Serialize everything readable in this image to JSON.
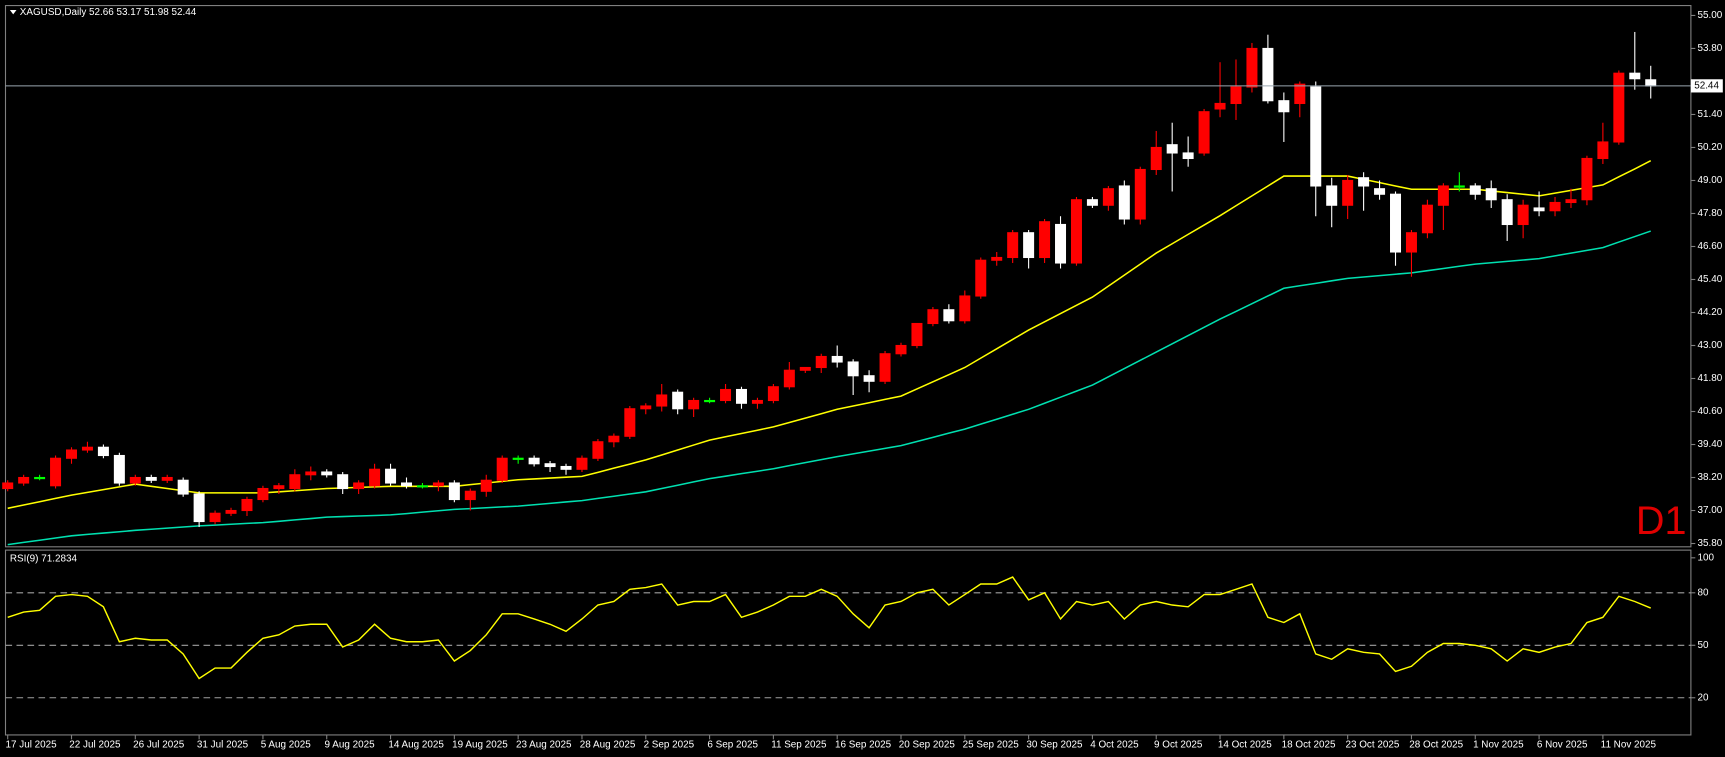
{
  "chart_data": [
    {
      "type": "candlestick",
      "title": "XAGUSD,Daily  52.66 53.17 51.98 52.44",
      "annotation": "D1",
      "categories": [
        "17 Jul 2025",
        null,
        null,
        null,
        "22 Jul 2025",
        null,
        null,
        null,
        "26 Jul 2025",
        null,
        null,
        null,
        "31 Jul 2025",
        null,
        null,
        null,
        "5 Aug 2025",
        null,
        null,
        null,
        "9 Aug 2025",
        null,
        null,
        null,
        "14 Aug 2025",
        null,
        null,
        null,
        "19 Aug 2025",
        null,
        null,
        null,
        "23 Aug 2025",
        null,
        null,
        null,
        "28 Aug 2025",
        null,
        null,
        null,
        "2 Sep 2025",
        null,
        null,
        null,
        "6 Sep 2025",
        null,
        null,
        null,
        "11 Sep 2025",
        null,
        null,
        null,
        "16 Sep 2025",
        null,
        null,
        null,
        "20 Sep 2025",
        null,
        null,
        null,
        "25 Sep 2025",
        null,
        null,
        null,
        "30 Sep 2025",
        null,
        null,
        null,
        "4 Oct 2025",
        null,
        null,
        null,
        "9 Oct 2025",
        null,
        null,
        null,
        "14 Oct 2025",
        null,
        null,
        null,
        "18 Oct 2025",
        null,
        null,
        null,
        "23 Oct 2025",
        null,
        null,
        null,
        "28 Oct 2025",
        null,
        null,
        null,
        "1 Nov 2025",
        null,
        null,
        null,
        "6 Nov 2025",
        null,
        null,
        null,
        "11 Nov 2025",
        null,
        null,
        null
      ],
      "open": [
        37.8,
        38.0,
        38.2,
        37.9,
        38.9,
        39.2,
        39.3,
        39.0,
        38.0,
        38.2,
        38.1,
        38.1,
        37.6,
        36.6,
        36.9,
        37.0,
        37.4,
        37.8,
        37.8,
        38.3,
        38.4,
        38.3,
        37.8,
        37.9,
        38.5,
        38.0,
        37.9,
        37.9,
        38.0,
        37.4,
        37.7,
        38.1,
        38.9,
        38.9,
        38.7,
        38.6,
        38.5,
        38.9,
        39.5,
        39.7,
        40.7,
        40.8,
        41.3,
        40.7,
        41.0,
        41.0,
        41.4,
        40.9,
        41.0,
        41.5,
        42.1,
        42.2,
        42.6,
        42.4,
        41.9,
        41.7,
        42.7,
        43.0,
        43.8,
        44.3,
        43.9,
        44.8,
        46.1,
        46.2,
        47.1,
        46.2,
        47.4,
        46.0,
        48.3,
        48.1,
        48.8,
        47.6,
        49.4,
        50.3,
        50.0,
        50.0,
        51.6,
        51.8,
        52.4,
        53.8,
        51.9,
        51.8,
        52.4,
        48.8,
        48.1,
        49.1,
        48.7,
        48.5,
        46.4,
        47.1,
        48.1,
        48.8,
        48.8,
        48.7,
        48.3,
        47.4,
        48.0,
        47.9,
        48.2,
        48.3,
        49.8,
        50.4,
        52.9,
        52.66
      ],
      "high": [
        38.1,
        38.3,
        38.3,
        39.0,
        39.3,
        39.5,
        39.4,
        39.1,
        38.3,
        38.3,
        38.3,
        38.2,
        37.7,
        37.0,
        37.1,
        37.5,
        37.9,
        38.0,
        38.5,
        38.6,
        38.5,
        38.4,
        38.1,
        38.7,
        38.7,
        38.2,
        38.0,
        38.1,
        38.1,
        37.8,
        38.3,
        39.0,
        39.0,
        39.0,
        38.8,
        38.7,
        39.0,
        39.6,
        39.8,
        40.8,
        40.9,
        41.6,
        41.4,
        41.1,
        41.1,
        41.6,
        41.5,
        41.1,
        41.6,
        42.4,
        42.2,
        42.7,
        43.0,
        42.5,
        42.1,
        42.8,
        43.1,
        43.8,
        44.4,
        44.5,
        45.0,
        46.2,
        46.4,
        47.2,
        47.2,
        47.6,
        47.7,
        48.4,
        48.4,
        48.8,
        49.0,
        49.5,
        50.8,
        51.1,
        50.6,
        51.6,
        53.3,
        53.4,
        54.0,
        54.3,
        52.2,
        52.6,
        52.6,
        49.1,
        49.2,
        49.3,
        49.0,
        48.6,
        47.2,
        48.3,
        48.9,
        49.3,
        48.9,
        49.0,
        48.5,
        48.3,
        48.6,
        48.4,
        48.7,
        49.9,
        51.1,
        53.0,
        54.4,
        53.17
      ],
      "low": [
        37.7,
        37.9,
        38.1,
        37.8,
        38.7,
        39.1,
        38.9,
        37.9,
        37.9,
        38.0,
        38.0,
        37.5,
        36.4,
        36.5,
        36.8,
        36.8,
        37.3,
        37.6,
        37.7,
        38.1,
        38.2,
        37.6,
        37.6,
        37.8,
        37.9,
        37.8,
        37.8,
        37.7,
        37.3,
        37.0,
        37.5,
        38.0,
        38.7,
        38.6,
        38.4,
        38.3,
        38.4,
        38.8,
        39.3,
        39.6,
        40.5,
        40.6,
        40.5,
        40.4,
        40.9,
        40.9,
        40.7,
        40.7,
        40.9,
        41.4,
        42.0,
        42.0,
        42.2,
        41.2,
        41.3,
        41.6,
        42.6,
        42.9,
        43.7,
        43.8,
        43.8,
        44.7,
        45.9,
        46.0,
        45.8,
        46.0,
        45.8,
        45.9,
        48.0,
        47.9,
        47.4,
        47.4,
        49.2,
        48.6,
        49.5,
        49.9,
        51.3,
        51.2,
        52.2,
        51.8,
        50.4,
        51.3,
        47.7,
        47.3,
        47.6,
        47.9,
        48.3,
        45.9,
        45.5,
        46.9,
        47.2,
        48.6,
        48.3,
        48.0,
        46.8,
        46.9,
        47.7,
        47.7,
        48.0,
        48.1,
        49.6,
        50.3,
        52.3,
        51.98
      ],
      "close": [
        38.0,
        38.2,
        38.2,
        38.9,
        39.2,
        39.3,
        39.0,
        38.0,
        38.2,
        38.1,
        38.2,
        37.6,
        36.6,
        36.9,
        37.0,
        37.4,
        37.8,
        37.9,
        38.3,
        38.4,
        38.3,
        37.8,
        38.0,
        38.5,
        38.0,
        37.9,
        37.9,
        38.0,
        37.4,
        37.7,
        38.1,
        38.9,
        38.9,
        38.7,
        38.6,
        38.5,
        38.9,
        39.5,
        39.7,
        40.7,
        40.8,
        41.2,
        40.7,
        41.0,
        41.0,
        41.4,
        40.9,
        41.0,
        41.5,
        42.1,
        42.2,
        42.6,
        42.4,
        41.9,
        41.7,
        42.7,
        43.0,
        43.8,
        44.3,
        43.9,
        44.8,
        46.1,
        46.2,
        47.1,
        46.2,
        47.5,
        46.0,
        48.3,
        48.1,
        48.7,
        47.6,
        49.4,
        50.2,
        50.0,
        49.8,
        51.5,
        51.8,
        52.4,
        53.8,
        51.9,
        51.5,
        52.5,
        48.8,
        48.1,
        49.0,
        48.8,
        48.5,
        46.4,
        47.1,
        48.1,
        48.8,
        48.8,
        48.5,
        48.3,
        47.4,
        48.1,
        47.9,
        48.2,
        48.3,
        49.8,
        50.4,
        52.9,
        52.7,
        52.44
      ],
      "up_color": "#ff0000",
      "down_color": "#ffffff",
      "doji_color": "#00ff00",
      "series": [
        {
          "color": "#ffff00",
          "values": [
            37.08,
            37.2,
            37.32,
            37.44,
            37.56,
            37.66,
            37.76,
            37.86,
            37.96,
            37.88,
            37.8,
            37.72,
            37.64,
            37.64,
            37.64,
            37.64,
            37.64,
            37.68,
            37.72,
            37.76,
            37.8,
            37.82,
            37.84,
            37.86,
            37.88,
            37.88,
            37.88,
            37.88,
            37.88,
            37.94,
            38.0,
            38.06,
            38.12,
            38.15,
            38.18,
            38.21,
            38.24,
            38.39,
            38.54,
            38.69,
            38.84,
            39.02,
            39.2,
            39.38,
            39.56,
            39.68,
            39.8,
            39.92,
            40.04,
            40.2,
            40.36,
            40.52,
            40.68,
            40.8,
            40.92,
            41.04,
            41.16,
            41.42,
            41.68,
            41.94,
            42.2,
            42.54,
            42.88,
            43.22,
            43.56,
            43.86,
            44.16,
            44.46,
            44.76,
            45.16,
            45.56,
            45.96,
            46.36,
            46.7,
            47.04,
            47.38,
            47.72,
            48.08,
            48.44,
            48.8,
            49.16,
            49.16,
            49.16,
            49.16,
            49.16,
            49.04,
            48.92,
            48.8,
            48.68,
            48.68,
            48.68,
            48.68,
            48.68,
            48.62,
            48.56,
            48.5,
            48.44,
            48.54,
            48.64,
            48.74,
            48.84,
            49.13,
            49.42,
            49.72
          ]
        },
        {
          "color": "#00e0b0",
          "values": [
            35.76,
            35.84,
            35.92,
            36.0,
            36.08,
            36.13,
            36.18,
            36.23,
            36.28,
            36.32,
            36.36,
            36.4,
            36.44,
            36.47,
            36.5,
            36.53,
            36.56,
            36.61,
            36.66,
            36.71,
            36.76,
            36.78,
            36.8,
            36.82,
            36.84,
            36.89,
            36.94,
            36.99,
            37.04,
            37.07,
            37.1,
            37.13,
            37.16,
            37.21,
            37.26,
            37.31,
            37.36,
            37.44,
            37.52,
            37.6,
            37.68,
            37.8,
            37.92,
            38.04,
            38.16,
            38.25,
            38.34,
            38.43,
            38.52,
            38.63,
            38.74,
            38.85,
            38.96,
            39.06,
            39.16,
            39.26,
            39.36,
            39.51,
            39.66,
            39.81,
            39.96,
            40.14,
            40.32,
            40.5,
            40.68,
            40.9,
            41.12,
            41.34,
            41.56,
            41.86,
            42.16,
            42.46,
            42.76,
            43.06,
            43.36,
            43.66,
            43.96,
            44.24,
            44.52,
            44.8,
            45.08,
            45.17,
            45.26,
            45.35,
            45.44,
            45.49,
            45.54,
            45.59,
            45.64,
            45.72,
            45.8,
            45.88,
            45.96,
            46.01,
            46.06,
            46.11,
            46.16,
            46.26,
            46.36,
            46.46,
            46.56,
            46.76,
            46.96,
            47.16
          ]
        }
      ],
      "current_price": 52.44,
      "current_price_color": "#9aa6b0",
      "ylim": [
        35.68,
        55.36
      ],
      "yticks": [
        {
          "value": 55.0,
          "label": "55.00"
        },
        {
          "value": 53.8,
          "label": "53.80"
        },
        {
          "value": 51.4,
          "label": "51.40"
        },
        {
          "value": 50.2,
          "label": "50.20"
        },
        {
          "value": 49.0,
          "label": "49.00"
        },
        {
          "value": 47.8,
          "label": "47.80"
        },
        {
          "value": 46.6,
          "label": "46.60"
        },
        {
          "value": 45.4,
          "label": "45.40"
        },
        {
          "value": 44.2,
          "label": "44.20"
        },
        {
          "value": 43.0,
          "label": "43.00"
        },
        {
          "value": 41.8,
          "label": "41.80"
        },
        {
          "value": 40.6,
          "label": "40.60"
        },
        {
          "value": 39.4,
          "label": "39.40"
        },
        {
          "value": 38.2,
          "label": "38.20"
        },
        {
          "value": 37.0,
          "label": "37.00"
        },
        {
          "value": 35.8,
          "label": "35.80"
        }
      ]
    },
    {
      "type": "line",
      "title": "RSI(9) 71.2834",
      "color": "#ffff00",
      "values": [
        66,
        69,
        70,
        78,
        79,
        78,
        72,
        52,
        54,
        53,
        53,
        45,
        31,
        37,
        37,
        46,
        54,
        56,
        61,
        62,
        62,
        49,
        53,
        62,
        54,
        52,
        52,
        53,
        41,
        47,
        56,
        68,
        68,
        65,
        62,
        58,
        65,
        73,
        75,
        82,
        83,
        85,
        73,
        75,
        75,
        79,
        66,
        69,
        73,
        78,
        78,
        82,
        78,
        68,
        60,
        73,
        75,
        80,
        82,
        73,
        79,
        85,
        85,
        89,
        76,
        80,
        65,
        75,
        73,
        75,
        65,
        73,
        75,
        73,
        72,
        79,
        79,
        82,
        85,
        66,
        63,
        68,
        45,
        42,
        48,
        46,
        45,
        35,
        38,
        46,
        51,
        51,
        50,
        48,
        41,
        48,
        46,
        49,
        51,
        63,
        66,
        78,
        75,
        71.2834
      ],
      "ylim": [
        0,
        104.4
      ],
      "yticks": [
        100,
        80,
        50,
        20
      ],
      "level_lines": [
        80,
        50,
        20
      ]
    }
  ]
}
